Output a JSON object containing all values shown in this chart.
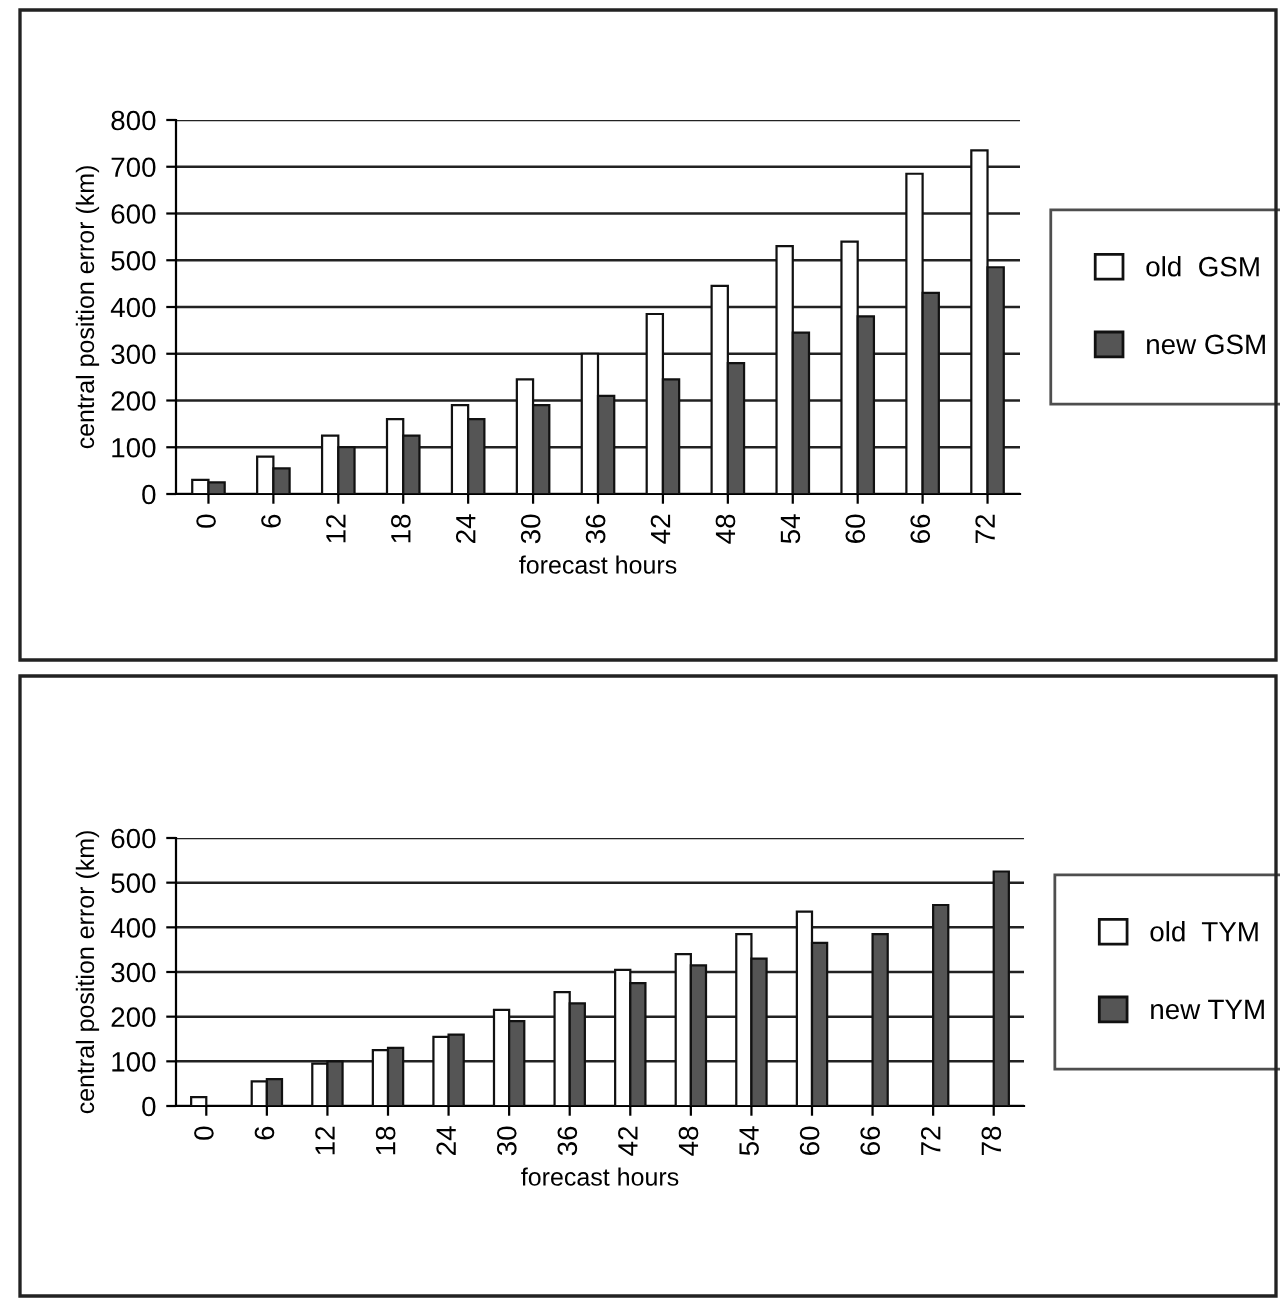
{
  "chart_data": [
    {
      "type": "bar",
      "xlabel": "forecast hours",
      "ylabel": "central position error (km)",
      "categories": [
        "0",
        "6",
        "12",
        "18",
        "24",
        "30",
        "36",
        "42",
        "48",
        "54",
        "60",
        "66",
        "72"
      ],
      "series": [
        {
          "name": "old  GSM",
          "color": "#ffffff",
          "values": [
            30,
            80,
            125,
            160,
            190,
            245,
            300,
            385,
            445,
            530,
            540,
            685,
            735
          ]
        },
        {
          "name": "new GSM",
          "color": "#555555",
          "values": [
            25,
            55,
            100,
            125,
            160,
            190,
            210,
            245,
            280,
            345,
            380,
            430,
            485
          ]
        }
      ],
      "ylim": [
        0,
        800
      ],
      "yticks": [
        0,
        100,
        200,
        300,
        400,
        500,
        600,
        700,
        800
      ],
      "grid": "y",
      "legend": "right"
    },
    {
      "type": "bar",
      "xlabel": "forecast hours",
      "ylabel": "central position error (km)",
      "categories": [
        "0",
        "6",
        "12",
        "18",
        "24",
        "30",
        "36",
        "42",
        "48",
        "54",
        "60",
        "66",
        "72",
        "78"
      ],
      "series": [
        {
          "name": "old  TYM",
          "color": "#ffffff",
          "values": [
            20,
            55,
            95,
            125,
            155,
            215,
            255,
            305,
            340,
            385,
            435,
            null,
            null,
            null
          ]
        },
        {
          "name": "new TYM",
          "color": "#555555",
          "values": [
            null,
            60,
            100,
            130,
            160,
            190,
            230,
            275,
            315,
            330,
            365,
            385,
            450,
            525
          ]
        }
      ],
      "ylim": [
        0,
        600
      ],
      "yticks": [
        0,
        100,
        200,
        300,
        400,
        500,
        600
      ],
      "grid": "y",
      "legend": "right"
    }
  ]
}
